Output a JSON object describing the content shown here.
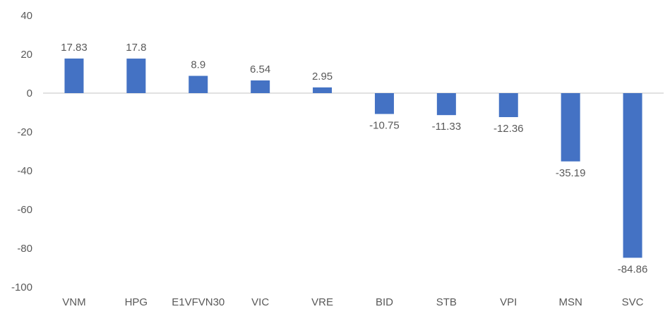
{
  "chart_data": {
    "type": "bar",
    "title": "",
    "xlabel": "",
    "ylabel": "",
    "categories": [
      "VNM",
      "HPG",
      "E1VFVN30",
      "VIC",
      "VRE",
      "BID",
      "STB",
      "VPI",
      "MSN",
      "SVC"
    ],
    "values": [
      17.83,
      17.8,
      8.9,
      6.54,
      2.95,
      -10.75,
      -11.33,
      -12.36,
      -35.19,
      -84.86
    ],
    "data_labels": [
      "17.83",
      "17.8",
      "8.9",
      "6.54",
      "2.95",
      "-10.75",
      "-11.33",
      "-12.36",
      "-35.19",
      "-84.86"
    ],
    "ylim": [
      -100,
      40
    ],
    "yticks": [
      40,
      20,
      0,
      -20,
      -40,
      -60,
      -80,
      -100
    ],
    "grid": false,
    "legend": "none",
    "bar_color": "#4472C4"
  }
}
